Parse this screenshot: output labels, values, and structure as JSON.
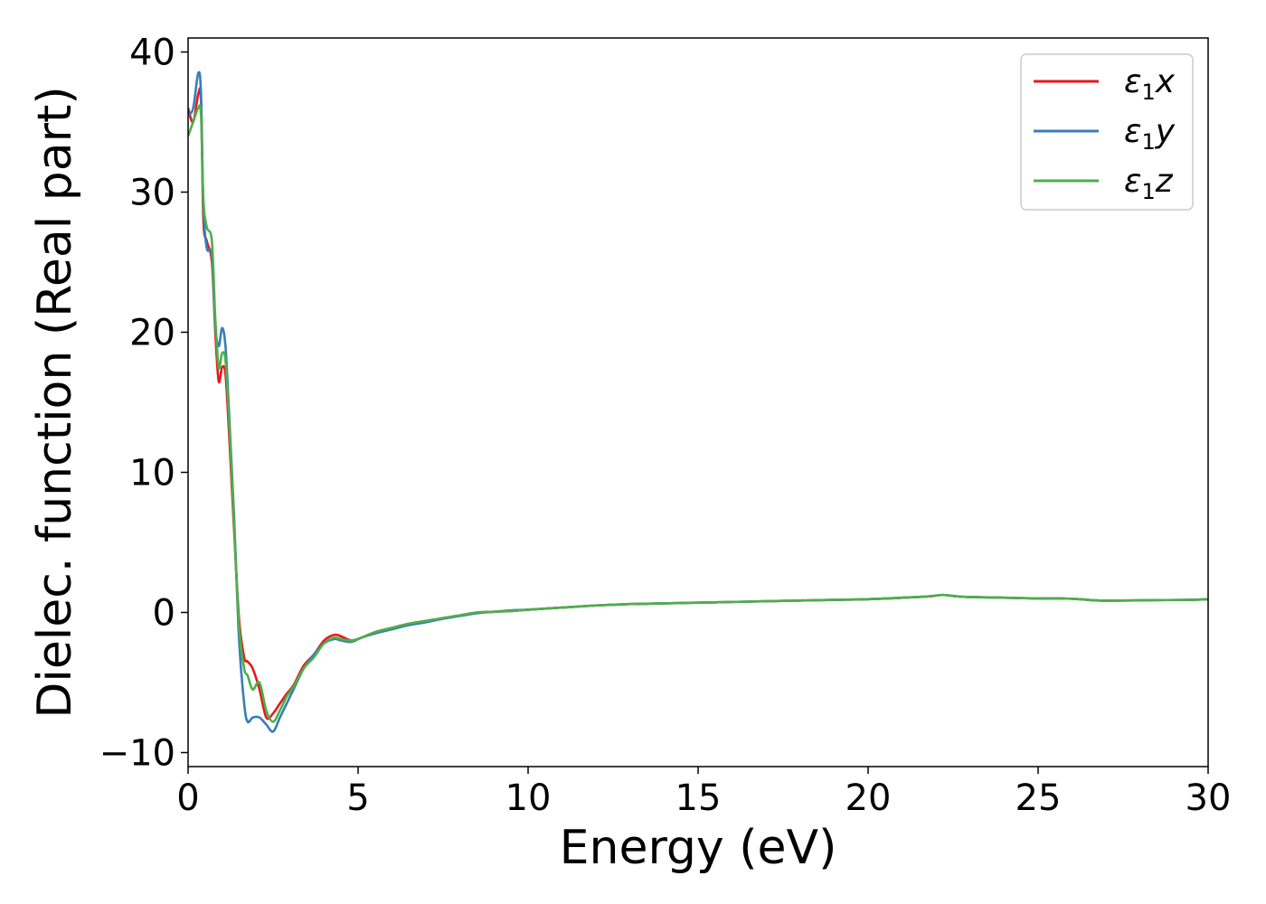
{
  "chart_data": {
    "type": "line",
    "title": "",
    "xlabel": "Energy (eV)",
    "ylabel": "Dielec. function (Real part)",
    "xlim": [
      0,
      30
    ],
    "ylim": [
      -11,
      41
    ],
    "xticks": [
      "0",
      "5",
      "10",
      "15",
      "20",
      "25",
      "30"
    ],
    "yticks": [
      "−10",
      "0",
      "10",
      "20",
      "30",
      "40"
    ],
    "grid": false,
    "legend_position": "top-right",
    "series": [
      {
        "name": "ε1x",
        "legend": {
          "base": "ε",
          "sub": "1",
          "var": "x"
        },
        "color": "#e41a1c",
        "x": [
          0,
          0.15,
          0.3,
          0.38,
          0.45,
          0.55,
          0.7,
          0.8,
          0.9,
          1.0,
          1.1,
          1.2,
          1.35,
          1.5,
          1.65,
          1.75,
          1.9,
          2.1,
          2.3,
          2.5,
          2.7,
          2.9,
          3.1,
          3.4,
          3.7,
          4.0,
          4.3,
          4.5,
          4.8,
          5.1,
          5.5,
          6.0,
          6.5,
          7.0,
          7.5,
          8.0,
          8.5,
          9.0,
          9.5,
          10.0,
          11.0,
          12.0,
          13.0,
          14.0,
          15.0,
          16.0,
          17.0,
          18.0,
          19.0,
          20.0,
          21.0,
          21.8,
          22.2,
          22.6,
          23.0,
          24.0,
          25.0,
          25.7,
          26.2,
          26.8,
          27.5,
          28.5,
          29.5,
          30.0
        ],
        "y": [
          36.0,
          35.0,
          37.0,
          36.5,
          28.0,
          26.5,
          25.0,
          20.0,
          16.5,
          17.5,
          17.0,
          13.0,
          6.0,
          -0.5,
          -3.2,
          -3.5,
          -4.0,
          -5.5,
          -7.5,
          -7.2,
          -6.5,
          -5.8,
          -5.2,
          -3.8,
          -3.0,
          -2.0,
          -1.6,
          -1.7,
          -2.0,
          -1.8,
          -1.4,
          -1.1,
          -0.8,
          -0.6,
          -0.4,
          -0.2,
          0.0,
          0.05,
          0.1,
          0.2,
          0.35,
          0.5,
          0.6,
          0.65,
          0.7,
          0.75,
          0.8,
          0.85,
          0.9,
          0.95,
          1.05,
          1.15,
          1.25,
          1.15,
          1.1,
          1.05,
          1.0,
          1.0,
          0.95,
          0.85,
          0.85,
          0.88,
          0.9,
          0.95
        ]
      },
      {
        "name": "ε1y",
        "legend": {
          "base": "ε",
          "sub": "1",
          "var": "y"
        },
        "color": "#377eb8",
        "x": [
          0,
          0.15,
          0.3,
          0.38,
          0.45,
          0.55,
          0.7,
          0.8,
          0.9,
          1.0,
          1.1,
          1.2,
          1.35,
          1.5,
          1.65,
          1.75,
          1.9,
          2.1,
          2.3,
          2.5,
          2.7,
          2.9,
          3.1,
          3.4,
          3.7,
          4.0,
          4.3,
          4.5,
          4.8,
          5.1,
          5.5,
          6.0,
          6.5,
          7.0,
          7.5,
          8.0,
          8.5,
          9.0,
          9.5,
          10.0,
          11.0,
          12.0,
          13.0,
          14.0,
          15.0,
          16.0,
          17.0,
          18.0,
          19.0,
          20.0,
          21.0,
          21.8,
          22.2,
          22.6,
          23.0,
          24.0,
          25.0,
          25.7,
          26.2,
          26.8,
          27.5,
          28.5,
          29.5,
          30.0
        ],
        "y": [
          35.5,
          36.0,
          38.5,
          37.0,
          29.0,
          26.0,
          25.5,
          20.5,
          19.0,
          20.3,
          19.0,
          14.5,
          7.0,
          -2.0,
          -6.5,
          -7.8,
          -7.5,
          -7.5,
          -8.0,
          -8.5,
          -7.5,
          -6.5,
          -5.5,
          -4.0,
          -3.0,
          -2.2,
          -1.9,
          -2.0,
          -2.1,
          -1.8,
          -1.5,
          -1.2,
          -0.9,
          -0.7,
          -0.45,
          -0.25,
          -0.05,
          0.05,
          0.15,
          0.2,
          0.35,
          0.5,
          0.6,
          0.65,
          0.7,
          0.75,
          0.8,
          0.85,
          0.9,
          0.95,
          1.05,
          1.15,
          1.25,
          1.15,
          1.1,
          1.05,
          1.0,
          1.0,
          0.95,
          0.85,
          0.85,
          0.88,
          0.9,
          0.95
        ]
      },
      {
        "name": "ε1z",
        "legend": {
          "base": "ε",
          "sub": "1",
          "var": "z"
        },
        "color": "#4daf4a",
        "x": [
          0,
          0.15,
          0.3,
          0.38,
          0.45,
          0.55,
          0.7,
          0.8,
          0.9,
          1.0,
          1.1,
          1.2,
          1.35,
          1.5,
          1.65,
          1.75,
          1.9,
          2.1,
          2.3,
          2.5,
          2.7,
          2.9,
          3.1,
          3.4,
          3.7,
          4.0,
          4.3,
          4.5,
          4.8,
          5.1,
          5.5,
          6.0,
          6.5,
          7.0,
          7.5,
          8.0,
          8.5,
          9.0,
          9.5,
          10.0,
          11.0,
          12.0,
          13.0,
          14.0,
          15.0,
          16.0,
          17.0,
          18.0,
          19.0,
          20.0,
          21.0,
          21.8,
          22.2,
          22.6,
          23.0,
          24.0,
          25.0,
          25.7,
          26.2,
          26.8,
          27.5,
          28.5,
          29.5,
          30.0
        ],
        "y": [
          34.0,
          35.0,
          36.0,
          35.5,
          29.5,
          27.5,
          26.5,
          21.0,
          17.5,
          18.5,
          18.0,
          14.0,
          6.5,
          -1.0,
          -4.0,
          -4.5,
          -5.5,
          -5.0,
          -7.0,
          -7.8,
          -7.0,
          -6.0,
          -5.3,
          -4.0,
          -3.2,
          -2.2,
          -1.8,
          -1.9,
          -2.0,
          -1.8,
          -1.4,
          -1.1,
          -0.8,
          -0.6,
          -0.4,
          -0.2,
          0.0,
          0.05,
          0.1,
          0.2,
          0.35,
          0.5,
          0.6,
          0.65,
          0.7,
          0.75,
          0.8,
          0.85,
          0.9,
          0.95,
          1.05,
          1.15,
          1.25,
          1.15,
          1.1,
          1.05,
          1.0,
          1.0,
          0.95,
          0.85,
          0.85,
          0.88,
          0.9,
          0.95
        ]
      }
    ]
  }
}
